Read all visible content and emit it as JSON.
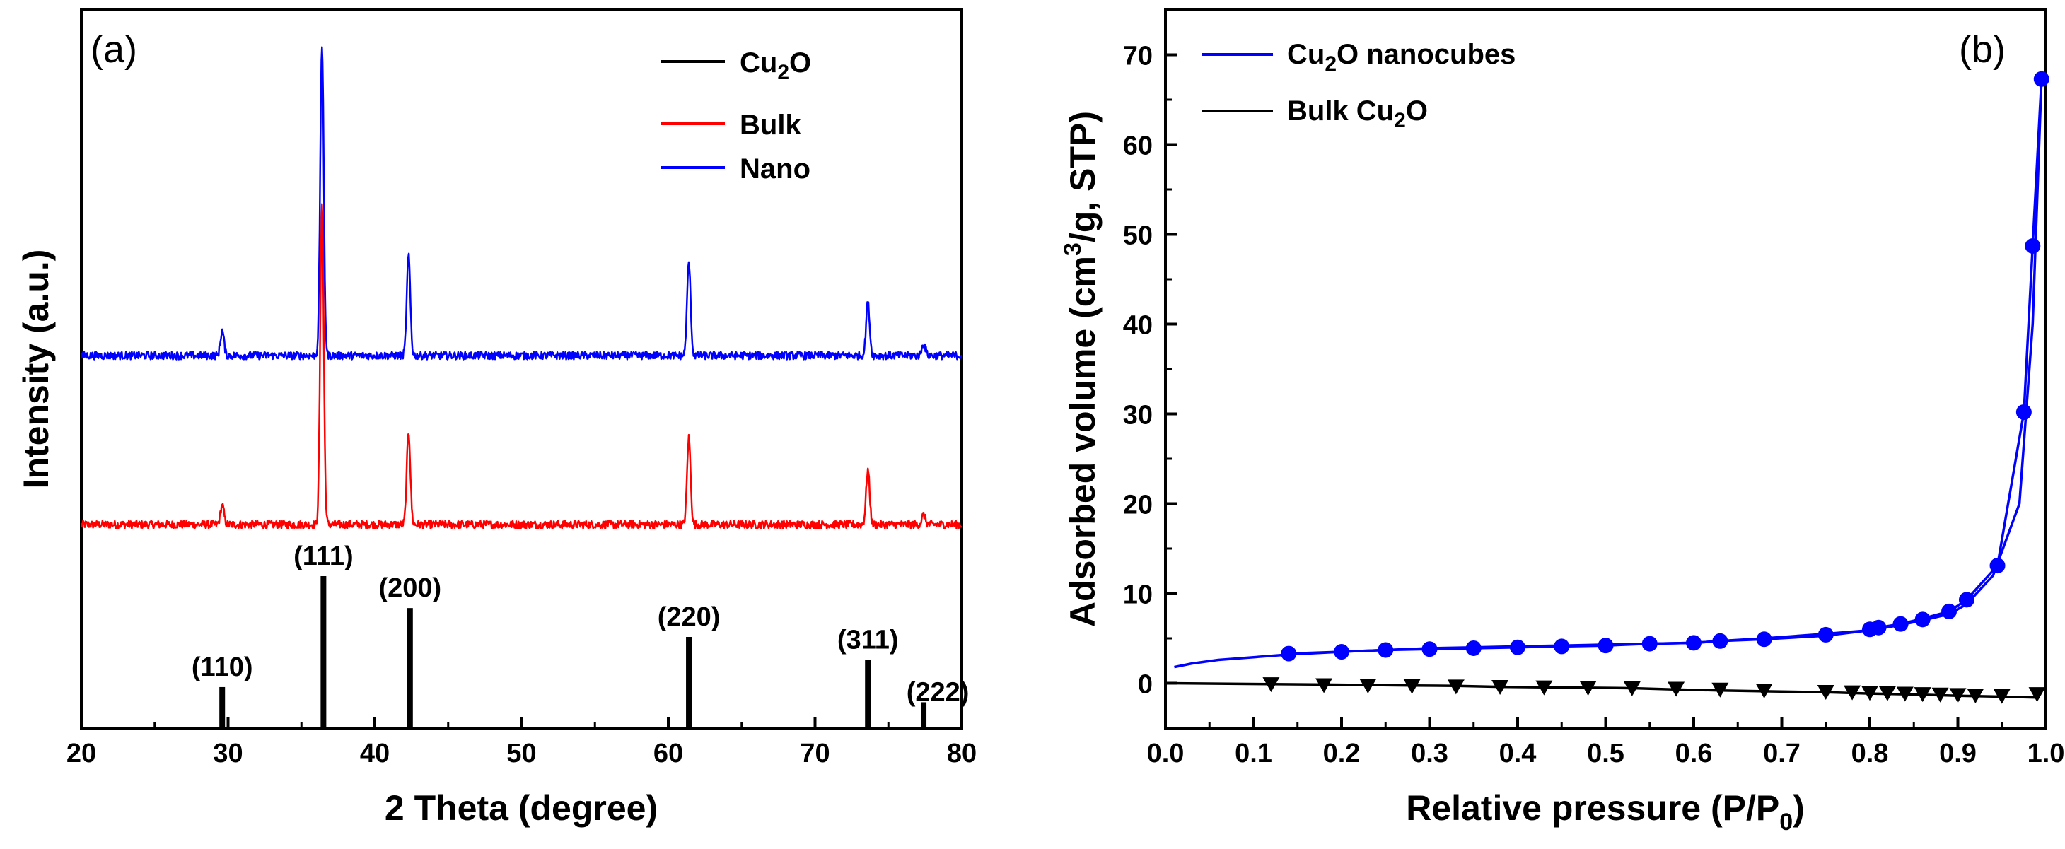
{
  "colors": {
    "ref": "#000000",
    "bulk": "#ff0000",
    "nano": "#0000ff"
  },
  "chart_data": [
    {
      "type": "line",
      "panel_label": "(a)",
      "xlabel": "2 Theta (degree)",
      "ylabel": "Intensity (a.u.)",
      "xlim": [
        20,
        80
      ],
      "x_ticks": [
        20,
        30,
        40,
        50,
        60,
        70,
        80
      ],
      "legend_position": "top-right",
      "legend": [
        {
          "name_main": "Cu",
          "name_sub": "2",
          "name_tail": "O",
          "color": "#000000"
        },
        {
          "name_main": "Bulk",
          "name_sub": "",
          "name_tail": "",
          "color": "#ff0000"
        },
        {
          "name_main": "Nano",
          "name_sub": "",
          "name_tail": "",
          "color": "#0000ff"
        }
      ],
      "reference_peaks": [
        {
          "two_theta": 29.6,
          "rel_intensity": 0.27,
          "hkl": "(110)"
        },
        {
          "two_theta": 36.5,
          "rel_intensity": 1.0,
          "hkl": "(111)"
        },
        {
          "two_theta": 42.4,
          "rel_intensity": 0.79,
          "hkl": "(200)"
        },
        {
          "two_theta": 61.4,
          "rel_intensity": 0.6,
          "hkl": "(220)"
        },
        {
          "two_theta": 73.6,
          "rel_intensity": 0.45,
          "hkl": "(311)"
        },
        {
          "two_theta": 77.4,
          "rel_intensity": 0.17,
          "hkl": "(222)"
        }
      ],
      "measured_peaks": [
        {
          "two_theta": 29.6,
          "bulk": 0.06,
          "nano": 0.08
        },
        {
          "two_theta": 36.4,
          "bulk": 1.0,
          "nano": 1.0
        },
        {
          "two_theta": 42.3,
          "bulk": 0.29,
          "nano": 0.32
        },
        {
          "two_theta": 61.4,
          "bulk": 0.27,
          "nano": 0.3
        },
        {
          "two_theta": 73.6,
          "bulk": 0.17,
          "nano": 0.17
        },
        {
          "two_theta": 77.4,
          "bulk": 0.03,
          "nano": 0.04
        }
      ]
    },
    {
      "type": "line",
      "panel_label": "(b)",
      "xlabel_main": "Relative pressure (P/P",
      "xlabel_sub": "0",
      "xlabel_tail": ")",
      "ylabel_main": "Adsorbed volume (cm",
      "ylabel_sup": "3",
      "ylabel_tail": "/g, STP)",
      "xlim": [
        0.0,
        1.0
      ],
      "ylim": [
        -5,
        75
      ],
      "x_ticks": [
        "0.0",
        "0.1",
        "0.2",
        "0.3",
        "0.4",
        "0.5",
        "0.6",
        "0.7",
        "0.8",
        "0.9",
        "1.0"
      ],
      "y_ticks": [
        0,
        10,
        20,
        30,
        40,
        50,
        60,
        70
      ],
      "legend_position": "top-left",
      "series": [
        {
          "name_main": "Cu",
          "name_sub": "2",
          "name_tail": "O nanocubes",
          "color": "#0000ff",
          "marker": "circle",
          "adsorption": [
            [
              0.01,
              1.8
            ],
            [
              0.03,
              2.2
            ],
            [
              0.06,
              2.6
            ],
            [
              0.1,
              2.9
            ],
            [
              0.14,
              3.2
            ],
            [
              0.2,
              3.5
            ],
            [
              0.25,
              3.7
            ],
            [
              0.3,
              3.8
            ],
            [
              0.35,
              3.9
            ],
            [
              0.4,
              4.0
            ],
            [
              0.45,
              4.1
            ],
            [
              0.5,
              4.2
            ],
            [
              0.55,
              4.4
            ],
            [
              0.6,
              4.5
            ],
            [
              0.63,
              4.7
            ],
            [
              0.68,
              4.9
            ],
            [
              0.75,
              5.3
            ],
            [
              0.8,
              5.9
            ],
            [
              0.83,
              6.4
            ],
            [
              0.86,
              7.0
            ],
            [
              0.89,
              7.7
            ],
            [
              0.91,
              8.8
            ],
            [
              0.94,
              12.0
            ],
            [
              0.97,
              20.0
            ],
            [
              0.985,
              40.0
            ],
            [
              0.995,
              67.3
            ]
          ],
          "desorption": [
            [
              0.995,
              67.3
            ],
            [
              0.985,
              48.7
            ],
            [
              0.975,
              30.2
            ],
            [
              0.945,
              13.1
            ],
            [
              0.91,
              9.3
            ],
            [
              0.89,
              8.0
            ],
            [
              0.86,
              7.2
            ],
            [
              0.835,
              6.6
            ],
            [
              0.81,
              6.2
            ],
            [
              0.8,
              5.9
            ],
            [
              0.75,
              5.5
            ],
            [
              0.68,
              5.0
            ],
            [
              0.63,
              4.7
            ],
            [
              0.6,
              4.5
            ],
            [
              0.55,
              4.4
            ],
            [
              0.5,
              4.3
            ],
            [
              0.45,
              4.2
            ],
            [
              0.4,
              4.1
            ],
            [
              0.35,
              4.0
            ],
            [
              0.3,
              3.9
            ],
            [
              0.25,
              3.7
            ],
            [
              0.2,
              3.5
            ],
            [
              0.14,
              3.3
            ]
          ],
          "markers": [
            [
              0.14,
              3.3
            ],
            [
              0.2,
              3.5
            ],
            [
              0.25,
              3.7
            ],
            [
              0.3,
              3.8
            ],
            [
              0.35,
              3.9
            ],
            [
              0.4,
              4.0
            ],
            [
              0.45,
              4.1
            ],
            [
              0.5,
              4.2
            ],
            [
              0.55,
              4.4
            ],
            [
              0.6,
              4.5
            ],
            [
              0.63,
              4.7
            ],
            [
              0.68,
              4.9
            ],
            [
              0.75,
              5.4
            ],
            [
              0.8,
              6.0
            ],
            [
              0.81,
              6.2
            ],
            [
              0.835,
              6.6
            ],
            [
              0.86,
              7.1
            ],
            [
              0.89,
              8.0
            ],
            [
              0.91,
              9.3
            ],
            [
              0.945,
              13.1
            ],
            [
              0.975,
              30.2
            ],
            [
              0.985,
              48.7
            ],
            [
              0.995,
              67.3
            ]
          ]
        },
        {
          "name_main": "Bulk Cu",
          "name_sub": "2",
          "name_tail": "O",
          "color": "#000000",
          "marker": "triangle-down",
          "adsorption": [
            [
              0.0,
              0.0
            ],
            [
              0.12,
              -0.1
            ],
            [
              0.18,
              -0.15
            ],
            [
              0.23,
              -0.2
            ],
            [
              0.28,
              -0.25
            ],
            [
              0.33,
              -0.3
            ],
            [
              0.38,
              -0.4
            ],
            [
              0.43,
              -0.45
            ],
            [
              0.48,
              -0.5
            ],
            [
              0.53,
              -0.55
            ],
            [
              0.58,
              -0.7
            ],
            [
              0.63,
              -0.8
            ],
            [
              0.68,
              -0.9
            ],
            [
              0.75,
              -1.0
            ],
            [
              0.8,
              -1.15
            ],
            [
              0.85,
              -1.25
            ],
            [
              0.9,
              -1.4
            ],
            [
              0.95,
              -1.5
            ],
            [
              0.99,
              -1.6
            ]
          ],
          "markers": [
            [
              0.12,
              -0.1
            ],
            [
              0.18,
              -0.2
            ],
            [
              0.23,
              -0.25
            ],
            [
              0.28,
              -0.3
            ],
            [
              0.33,
              -0.35
            ],
            [
              0.38,
              -0.4
            ],
            [
              0.43,
              -0.45
            ],
            [
              0.48,
              -0.5
            ],
            [
              0.53,
              -0.55
            ],
            [
              0.58,
              -0.6
            ],
            [
              0.63,
              -0.7
            ],
            [
              0.68,
              -0.8
            ],
            [
              0.75,
              -0.95
            ],
            [
              0.78,
              -1.0
            ],
            [
              0.8,
              -1.05
            ],
            [
              0.82,
              -1.1
            ],
            [
              0.84,
              -1.15
            ],
            [
              0.86,
              -1.2
            ],
            [
              0.88,
              -1.25
            ],
            [
              0.9,
              -1.3
            ],
            [
              0.92,
              -1.35
            ],
            [
              0.95,
              -1.4
            ],
            [
              0.99,
              -1.2
            ]
          ]
        }
      ]
    }
  ]
}
